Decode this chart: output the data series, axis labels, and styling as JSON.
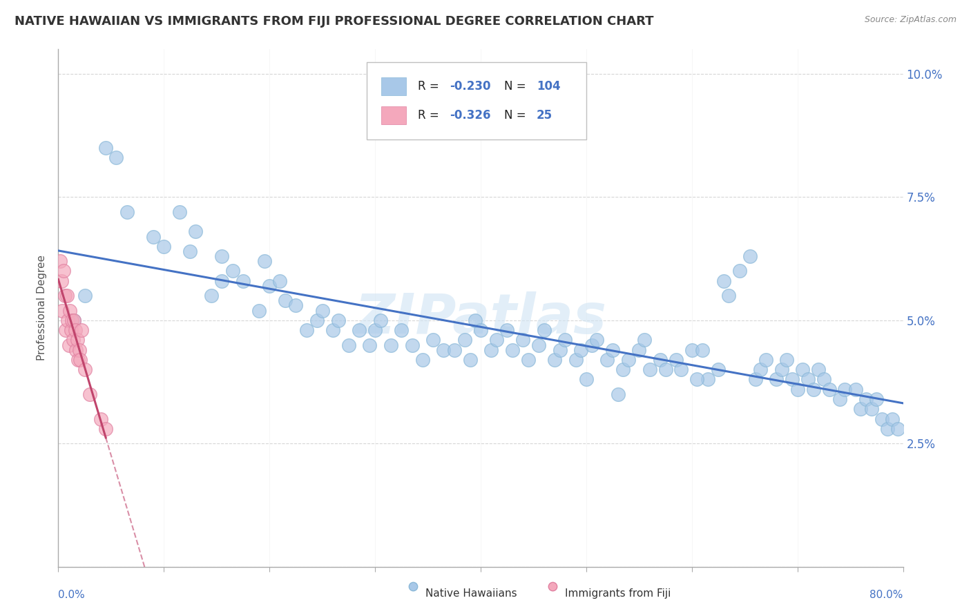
{
  "title": "NATIVE HAWAIIAN VS IMMIGRANTS FROM FIJI PROFESSIONAL DEGREE CORRELATION CHART",
  "source": "Source: ZipAtlas.com",
  "ylabel": "Professional Degree",
  "xlim": [
    0.0,
    0.8
  ],
  "ylim": [
    0.0,
    0.105
  ],
  "ytick_vals": [
    0.025,
    0.05,
    0.075,
    0.1
  ],
  "ytick_labels": [
    "2.5%",
    "5.0%",
    "7.5%",
    "10.0%"
  ],
  "xtick_vals": [
    0.0,
    0.1,
    0.2,
    0.3,
    0.4,
    0.5,
    0.6,
    0.7,
    0.8
  ],
  "blue_color": "#a8c8e8",
  "pink_color": "#f4a8bc",
  "line_blue": "#4472c4",
  "line_pink": "#c0446c",
  "axis_label_color": "#4472c4",
  "title_color": "#333333",
  "source_color": "#888888",
  "legend_r1": "-0.230",
  "legend_n1": "104",
  "legend_r2": "-0.326",
  "legend_n2": "25",
  "blue_x": [
    0.015,
    0.025,
    0.045,
    0.055,
    0.065,
    0.09,
    0.1,
    0.115,
    0.125,
    0.13,
    0.145,
    0.155,
    0.155,
    0.165,
    0.175,
    0.19,
    0.195,
    0.2,
    0.21,
    0.215,
    0.225,
    0.235,
    0.245,
    0.25,
    0.26,
    0.265,
    0.275,
    0.285,
    0.295,
    0.3,
    0.305,
    0.315,
    0.325,
    0.335,
    0.345,
    0.355,
    0.365,
    0.375,
    0.385,
    0.39,
    0.395,
    0.4,
    0.41,
    0.415,
    0.425,
    0.43,
    0.44,
    0.445,
    0.455,
    0.46,
    0.47,
    0.475,
    0.48,
    0.49,
    0.495,
    0.505,
    0.51,
    0.52,
    0.525,
    0.535,
    0.54,
    0.55,
    0.555,
    0.56,
    0.57,
    0.575,
    0.585,
    0.59,
    0.6,
    0.61,
    0.615,
    0.625,
    0.63,
    0.635,
    0.645,
    0.655,
    0.66,
    0.665,
    0.67,
    0.68,
    0.685,
    0.69,
    0.695,
    0.7,
    0.705,
    0.71,
    0.715,
    0.72,
    0.725,
    0.73,
    0.74,
    0.745,
    0.755,
    0.76,
    0.765,
    0.77,
    0.775,
    0.78,
    0.785,
    0.79,
    0.795,
    0.5,
    0.53,
    0.605
  ],
  "blue_y": [
    0.05,
    0.055,
    0.085,
    0.083,
    0.072,
    0.067,
    0.065,
    0.072,
    0.064,
    0.068,
    0.055,
    0.063,
    0.058,
    0.06,
    0.058,
    0.052,
    0.062,
    0.057,
    0.058,
    0.054,
    0.053,
    0.048,
    0.05,
    0.052,
    0.048,
    0.05,
    0.045,
    0.048,
    0.045,
    0.048,
    0.05,
    0.045,
    0.048,
    0.045,
    0.042,
    0.046,
    0.044,
    0.044,
    0.046,
    0.042,
    0.05,
    0.048,
    0.044,
    0.046,
    0.048,
    0.044,
    0.046,
    0.042,
    0.045,
    0.048,
    0.042,
    0.044,
    0.046,
    0.042,
    0.044,
    0.045,
    0.046,
    0.042,
    0.044,
    0.04,
    0.042,
    0.044,
    0.046,
    0.04,
    0.042,
    0.04,
    0.042,
    0.04,
    0.044,
    0.044,
    0.038,
    0.04,
    0.058,
    0.055,
    0.06,
    0.063,
    0.038,
    0.04,
    0.042,
    0.038,
    0.04,
    0.042,
    0.038,
    0.036,
    0.04,
    0.038,
    0.036,
    0.04,
    0.038,
    0.036,
    0.034,
    0.036,
    0.036,
    0.032,
    0.034,
    0.032,
    0.034,
    0.03,
    0.028,
    0.03,
    0.028,
    0.038,
    0.035,
    0.038
  ],
  "pink_x": [
    0.002,
    0.003,
    0.004,
    0.005,
    0.006,
    0.007,
    0.008,
    0.009,
    0.01,
    0.011,
    0.012,
    0.013,
    0.014,
    0.015,
    0.016,
    0.017,
    0.018,
    0.019,
    0.02,
    0.021,
    0.022,
    0.025,
    0.03,
    0.04,
    0.045
  ],
  "pink_y": [
    0.062,
    0.058,
    0.052,
    0.06,
    0.055,
    0.048,
    0.055,
    0.05,
    0.045,
    0.052,
    0.048,
    0.05,
    0.046,
    0.05,
    0.048,
    0.044,
    0.046,
    0.042,
    0.044,
    0.042,
    0.048,
    0.04,
    0.035,
    0.03,
    0.028
  ]
}
